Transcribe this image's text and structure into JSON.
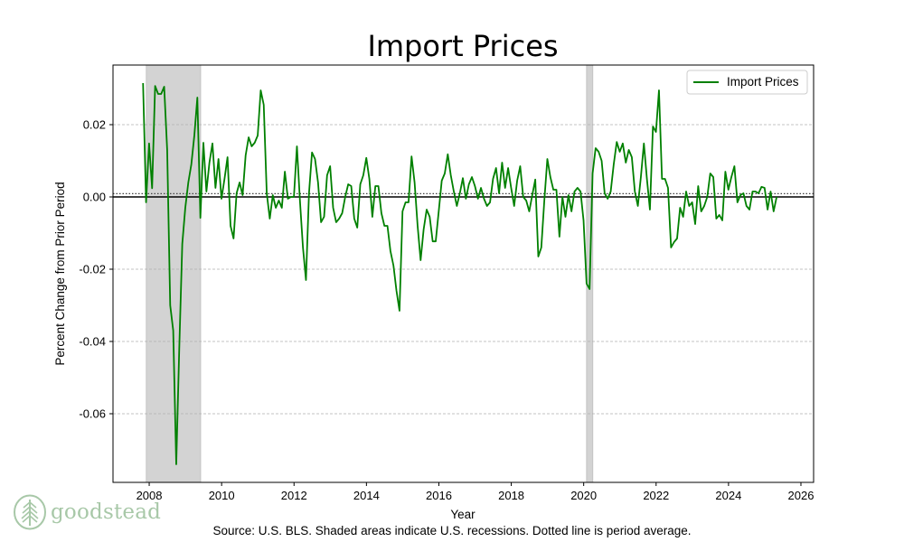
{
  "chart_data": {
    "type": "line",
    "title": "Import Prices",
    "xlabel": "Year",
    "ylabel": "Percent Change from Prior Period",
    "source": "Source: U.S. BLS. Shaded areas indicate U.S. recessions. Dotted line is period average.",
    "xlim": [
      2007.0,
      2026.35
    ],
    "ylim": [
      -0.079,
      0.0365
    ],
    "xticks": [
      2008,
      2010,
      2012,
      2014,
      2016,
      2018,
      2020,
      2022,
      2024,
      2026
    ],
    "xtick_labels": [
      "2008",
      "2010",
      "2012",
      "2014",
      "2016",
      "2018",
      "2020",
      "2022",
      "2024",
      "2026"
    ],
    "yticks": [
      0.02,
      0.0,
      -0.02,
      -0.04,
      -0.06
    ],
    "ytick_labels": [
      "0.02",
      "0.00",
      "-0.02",
      "-0.04",
      "-0.06"
    ],
    "grid": true,
    "legend_position": "top-right",
    "recessions": [
      [
        2007.92,
        2009.42
      ],
      [
        2020.08,
        2020.25
      ]
    ],
    "zero_line": 0.0,
    "average_line": 0.0004,
    "series": [
      {
        "name": "Import Prices",
        "color": "#008000",
        "x_start": 2007.83,
        "x_step": 0.08333,
        "values": [
          0.0315,
          -0.0015,
          0.0148,
          0.0024,
          0.0307,
          0.0285,
          0.0285,
          0.0305,
          0.013,
          -0.03,
          -0.037,
          -0.074,
          -0.042,
          -0.013,
          -0.003,
          0.004,
          0.009,
          0.017,
          0.0275,
          -0.0058,
          0.015,
          0.0015,
          0.0095,
          0.0148,
          0.0025,
          0.0105,
          -0.0005,
          0.005,
          0.011,
          -0.008,
          -0.0115,
          0.001,
          0.004,
          0.0005,
          0.0115,
          0.0165,
          0.014,
          0.015,
          0.017,
          0.0295,
          0.0255,
          0.001,
          -0.006,
          0.0005,
          -0.003,
          -0.001,
          -0.003,
          0.007,
          -0.0005,
          0.0,
          0.0,
          0.014,
          -0.001,
          -0.014,
          -0.023,
          0.001,
          0.0123,
          0.0105,
          0.004,
          -0.007,
          -0.0055,
          0.006,
          0.0085,
          -0.003,
          -0.007,
          -0.006,
          -0.0045,
          0.0,
          0.0035,
          0.003,
          -0.006,
          -0.0085,
          0.0035,
          0.006,
          0.0108,
          0.005,
          -0.0055,
          0.003,
          0.003,
          -0.0045,
          -0.008,
          -0.008,
          -0.015,
          -0.019,
          -0.026,
          -0.0315,
          -0.004,
          -0.0015,
          -0.0015,
          0.0112,
          0.004,
          -0.008,
          -0.0175,
          -0.009,
          -0.0035,
          -0.0055,
          -0.0123,
          -0.0123,
          -0.004,
          0.0045,
          0.0065,
          0.0118,
          0.006,
          0.0015,
          -0.0025,
          0.001,
          0.0052,
          -0.0005,
          0.0035,
          0.0055,
          0.003,
          -0.0005,
          0.0025,
          -0.0005,
          -0.0025,
          -0.0015,
          0.005,
          0.008,
          0.001,
          0.0095,
          0.0025,
          0.008,
          0.0025,
          -0.0025,
          0.0045,
          0.0085,
          0.0,
          -0.001,
          -0.004,
          0.0005,
          0.0048,
          -0.0165,
          -0.014,
          -0.001,
          0.0105,
          0.0055,
          0.002,
          0.002,
          -0.011,
          0.0,
          -0.0055,
          0.0005,
          -0.004,
          0.0015,
          0.0025,
          0.0015,
          -0.0065,
          -0.024,
          -0.0255,
          0.0065,
          0.0135,
          0.0125,
          0.01,
          0.001,
          -0.0005,
          0.0015,
          0.009,
          0.0152,
          0.0125,
          0.0148,
          0.0095,
          0.013,
          0.011,
          0.0015,
          -0.0025,
          0.0055,
          0.0148,
          0.005,
          -0.0035,
          0.0195,
          0.018,
          0.0295,
          0.005,
          0.005,
          0.0025,
          -0.014,
          -0.0125,
          -0.0115,
          -0.003,
          -0.0055,
          0.0015,
          -0.0025,
          -0.0015,
          -0.0075,
          0.003,
          -0.004,
          -0.0025,
          0.0,
          0.0065,
          0.0055,
          -0.006,
          -0.005,
          -0.0065,
          0.007,
          0.002,
          0.0055,
          0.0085,
          -0.0015,
          0.0005,
          0.001,
          -0.0025,
          -0.0035,
          0.0015,
          0.0015,
          0.001,
          0.0028,
          0.0025,
          -0.0035,
          0.0015,
          -0.004,
          0.0
        ]
      }
    ]
  },
  "logo": {
    "text": "goodstead",
    "icon": "tree-icon"
  }
}
